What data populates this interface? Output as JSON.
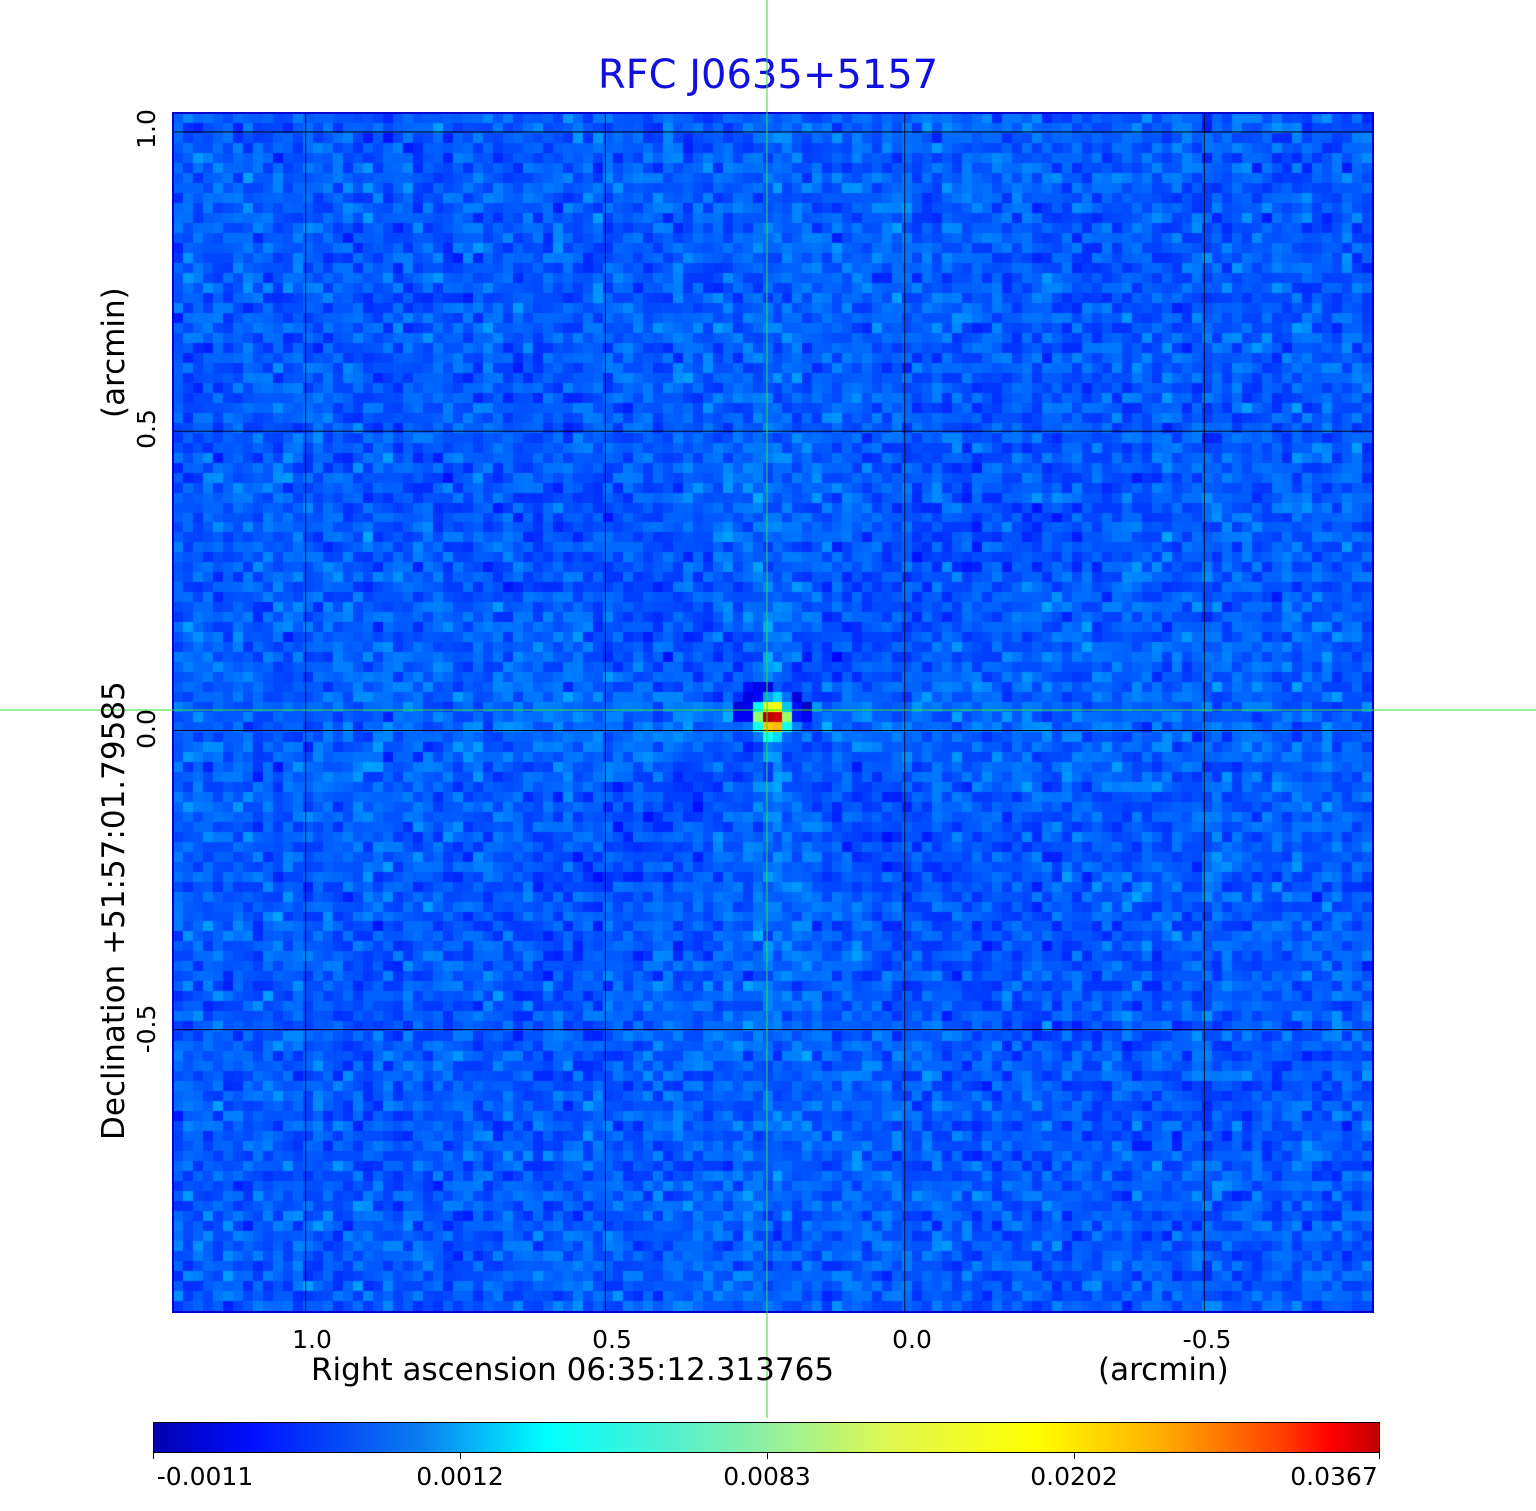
{
  "chart_data": {
    "type": "heatmap",
    "title": "RFC J0635+5157",
    "xlabel": "Right ascension  06:35:12.313765",
    "xunit": "(arcmin)",
    "ylabel": "Declination  +51:57:01.79585",
    "yunit": "(arcmin)",
    "xticks": [
      "1.0",
      "0.5",
      "0.0",
      "-0.5"
    ],
    "xtick_values": [
      1.0,
      0.5,
      0.0,
      -0.5
    ],
    "yticks": [
      "1.0",
      "0.5",
      "0.0",
      "-0.5"
    ],
    "ytick_values": [
      1.0,
      0.5,
      0.0,
      -0.5
    ],
    "xlim": [
      1.22,
      -0.78
    ],
    "ylim": [
      -0.97,
      1.03
    ],
    "grid": true,
    "colormap": "jet",
    "colorbar": {
      "ticks": [
        "-0.0011",
        "0.0012",
        "0.0083",
        "0.0202",
        "0.0367"
      ],
      "placement": "bottom"
    },
    "source": {
      "x": 0.22,
      "y": 0.02,
      "peak": 0.0367
    },
    "crosshair": {
      "x": 0.22,
      "y": 0.03,
      "color": "#00dd00"
    },
    "background_noise_level": 0.0
  },
  "colors": {
    "title": "#1010e0",
    "frame": "#0000d0",
    "grid": "#000000",
    "crosshair": "#33dd33"
  }
}
